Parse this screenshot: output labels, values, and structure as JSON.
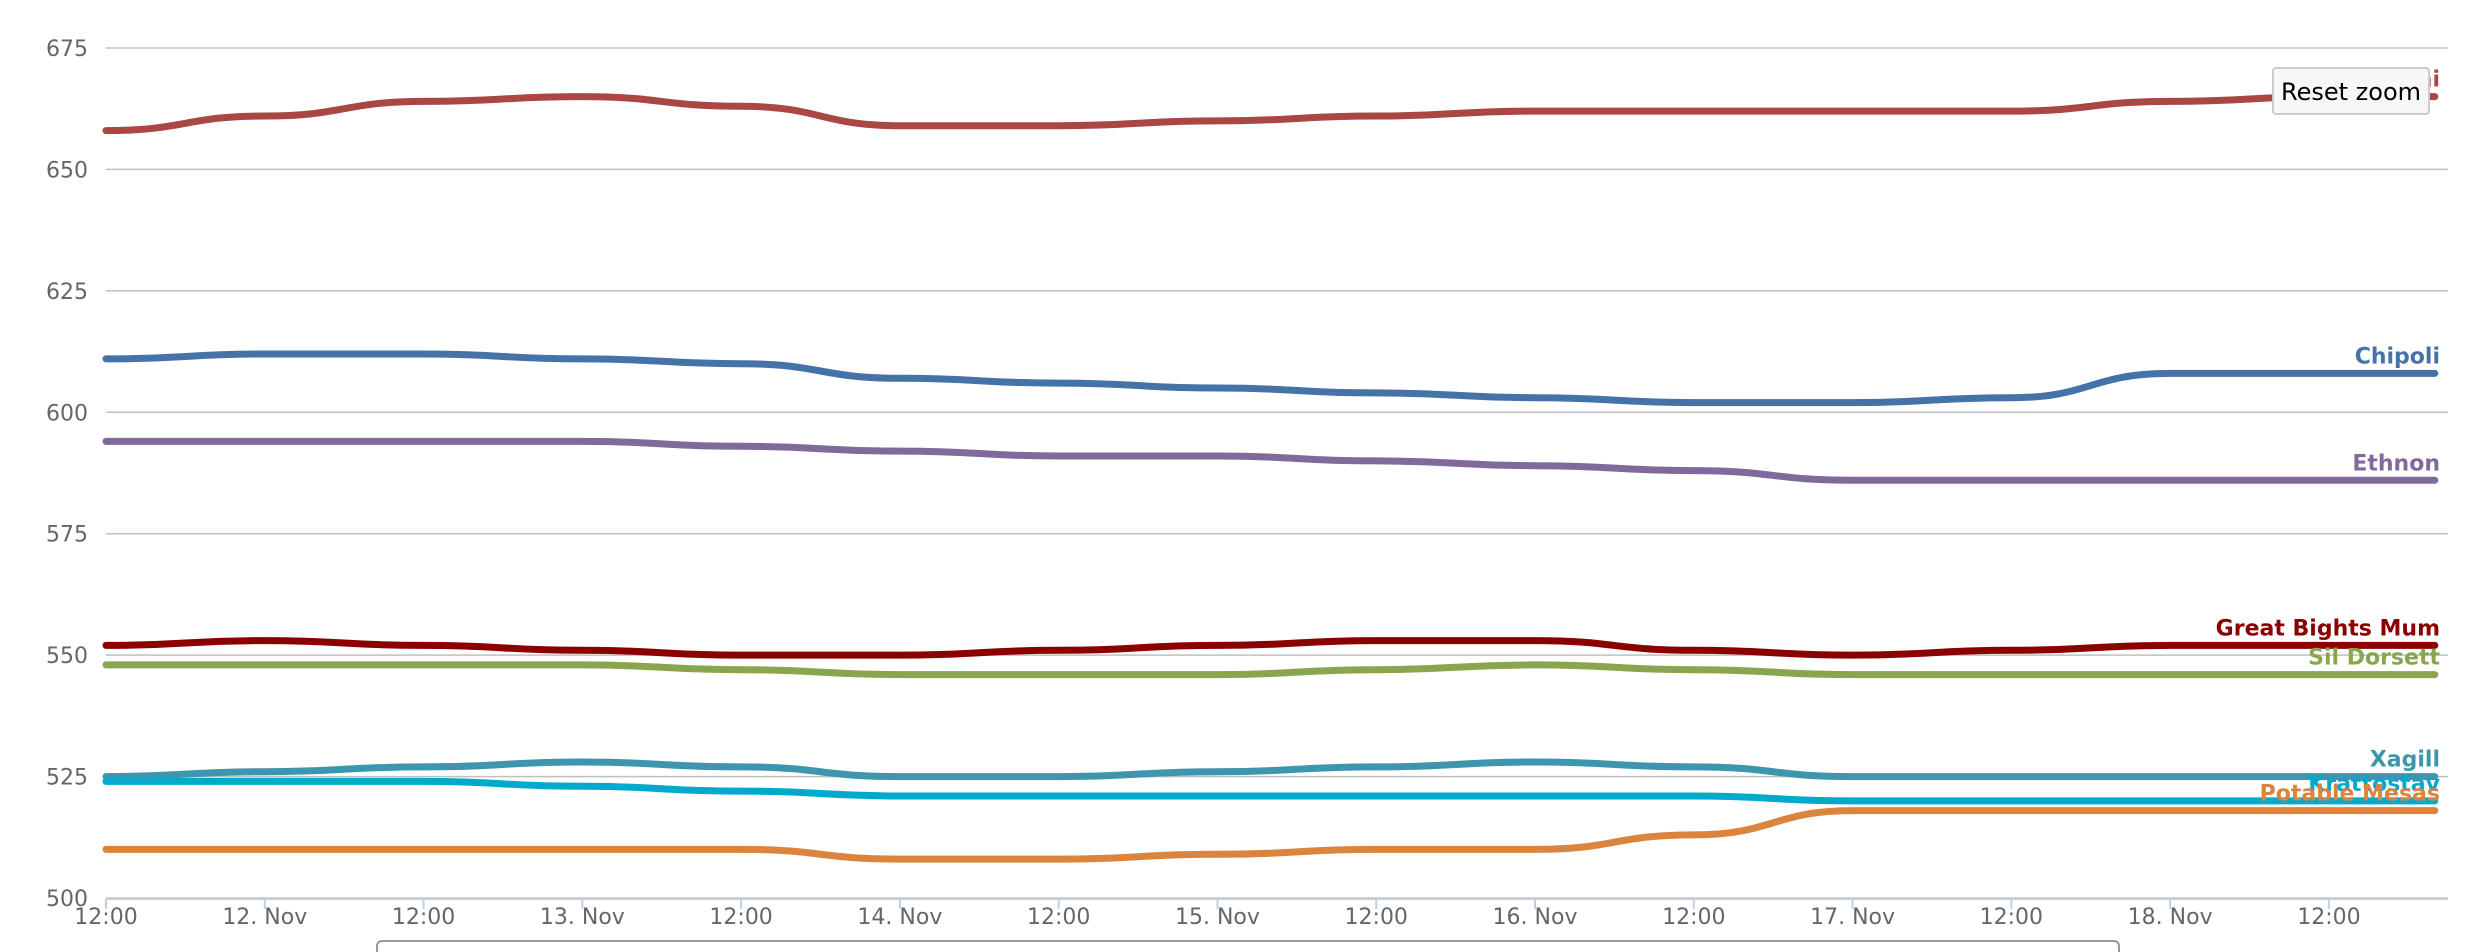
{
  "reset_button": {
    "label": "Reset zoom"
  },
  "chart_data": {
    "type": "line",
    "ylim": [
      500,
      675
    ],
    "yticks": [
      500,
      525,
      550,
      575,
      600,
      625,
      650,
      675
    ],
    "xlim": [
      "2023-11-11T12:00",
      "2023-11-18T21:00"
    ],
    "xticks": [
      {
        "t": "2023-11-11T12:00",
        "label": "12:00"
      },
      {
        "t": "2023-11-12T00:00",
        "label": "12. Nov"
      },
      {
        "t": "2023-11-12T12:00",
        "label": "12:00"
      },
      {
        "t": "2023-11-13T00:00",
        "label": "13. Nov"
      },
      {
        "t": "2023-11-13T12:00",
        "label": "12:00"
      },
      {
        "t": "2023-11-14T00:00",
        "label": "14. Nov"
      },
      {
        "t": "2023-11-14T12:00",
        "label": "12:00"
      },
      {
        "t": "2023-11-15T00:00",
        "label": "15. Nov"
      },
      {
        "t": "2023-11-15T12:00",
        "label": "12:00"
      },
      {
        "t": "2023-11-16T00:00",
        "label": "16. Nov"
      },
      {
        "t": "2023-11-16T12:00",
        "label": "12:00"
      },
      {
        "t": "2023-11-17T00:00",
        "label": "17. Nov"
      },
      {
        "t": "2023-11-17T12:00",
        "label": "12:00"
      },
      {
        "t": "2023-11-18T00:00",
        "label": "18. Nov"
      },
      {
        "t": "2023-11-18T12:00",
        "label": "12:00"
      }
    ],
    "x": [
      "2023-11-11T12:00",
      "2023-11-12T00:00",
      "2023-11-12T12:00",
      "2023-11-13T00:00",
      "2023-11-13T12:00",
      "2023-11-14T00:00",
      "2023-11-14T12:00",
      "2023-11-15T00:00",
      "2023-11-15T12:00",
      "2023-11-16T00:00",
      "2023-11-16T12:00",
      "2023-11-17T00:00",
      "2023-11-17T12:00",
      "2023-11-18T00:00",
      "2023-11-18T12:00",
      "2023-11-18T20:00"
    ],
    "grid": true,
    "series": [
      {
        "name": "Paimi",
        "color": "#aa4643",
        "values": [
          658,
          661,
          664,
          665,
          663,
          659,
          659,
          660,
          661,
          662,
          662,
          662,
          662,
          664,
          665,
          665
        ]
      },
      {
        "name": "Chipoli",
        "color": "#4572a7",
        "values": [
          611,
          612,
          612,
          611,
          610,
          607,
          606,
          605,
          604,
          603,
          602,
          602,
          603,
          608,
          608,
          608
        ]
      },
      {
        "name": "Ethnon",
        "color": "#80699b",
        "values": [
          594,
          594,
          594,
          594,
          593,
          592,
          591,
          591,
          590,
          589,
          588,
          586,
          586,
          586,
          586,
          586
        ]
      },
      {
        "name": "Great Bights Mum",
        "color": "#8b0000",
        "values": [
          552,
          553,
          552,
          551,
          550,
          550,
          551,
          552,
          553,
          553,
          551,
          550,
          551,
          552,
          552,
          552
        ]
      },
      {
        "name": "Sil Dorsett",
        "color": "#89a54e",
        "values": [
          548,
          548,
          548,
          548,
          547,
          546,
          546,
          546,
          547,
          548,
          547,
          546,
          546,
          546,
          546,
          546
        ]
      },
      {
        "name": "Xagill",
        "color": "#3d96ae",
        "values": [
          525,
          526,
          527,
          528,
          527,
          525,
          525,
          526,
          527,
          528,
          527,
          525,
          525,
          525,
          525,
          525
        ]
      },
      {
        "name": "Krattostav",
        "color": "#00aacc",
        "values": [
          524,
          524,
          524,
          523,
          522,
          521,
          521,
          521,
          521,
          521,
          521,
          520,
          520,
          520,
          520,
          520
        ]
      },
      {
        "name": "Potable Mesas",
        "color": "#db843d",
        "values": [
          510,
          510,
          510,
          510,
          510,
          508,
          508,
          509,
          510,
          510,
          513,
          518,
          518,
          518,
          518,
          518
        ]
      }
    ]
  }
}
